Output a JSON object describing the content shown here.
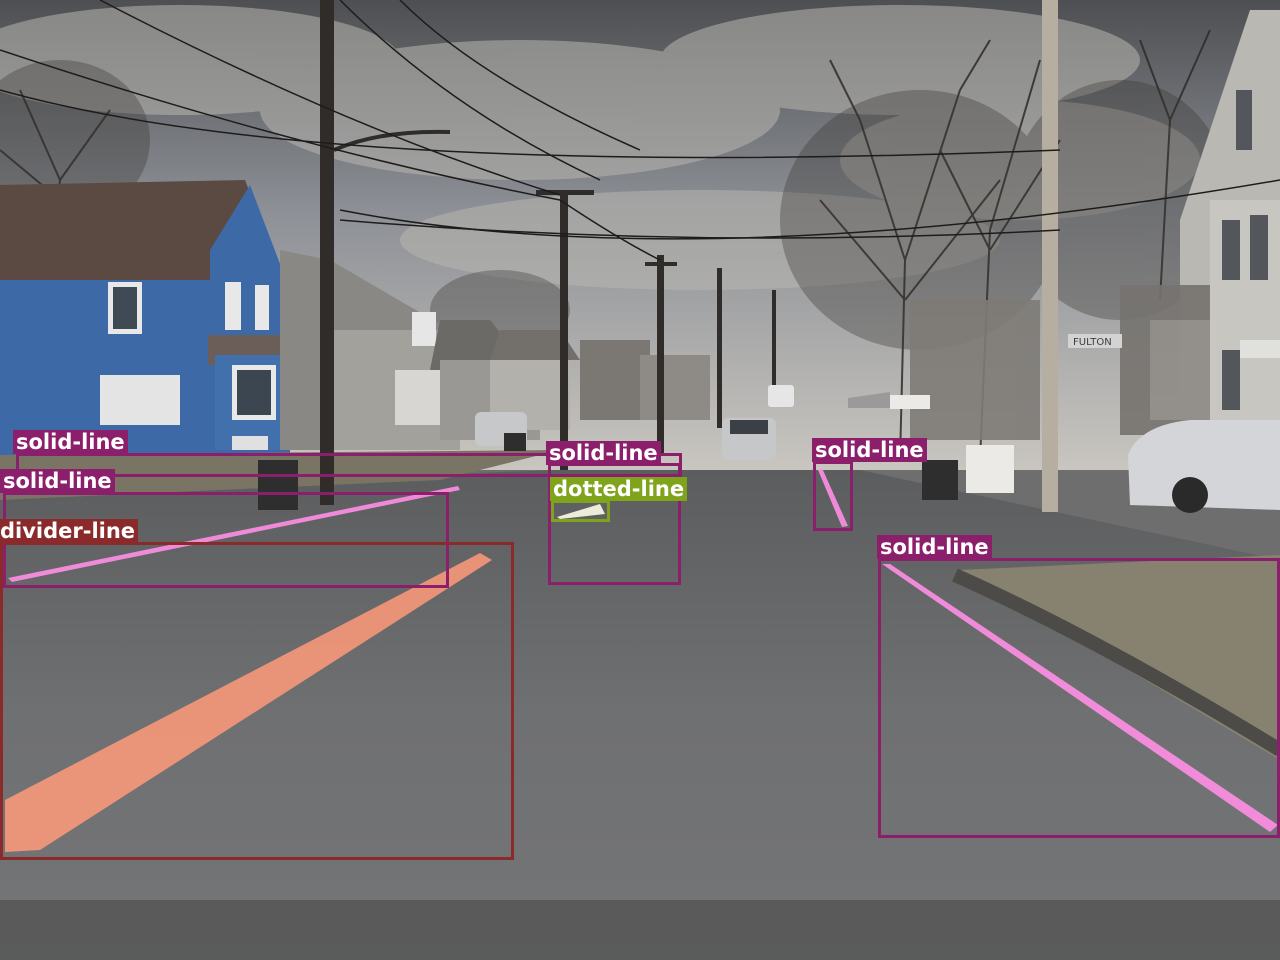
{
  "scene": {
    "description_visible": false,
    "street_sign": "FULTON",
    "colors": {
      "solid_line": "#8c1f6b",
      "divider_line": "#8b2a2a",
      "dotted_line": "#7fa31a",
      "solid_line_mask": "#ff8fe6",
      "divider_line_mask": "#ff9a7a",
      "dotted_line_mask": "#f3f3e0"
    }
  },
  "detections": [
    {
      "id": "det-1",
      "label": "solid-line",
      "class": "solid_line"
    },
    {
      "id": "det-2",
      "label": "solid-line",
      "class": "solid_line"
    },
    {
      "id": "det-3",
      "label": "divider-line",
      "class": "divider_line"
    },
    {
      "id": "det-4",
      "label": "solid-line",
      "class": "solid_line"
    },
    {
      "id": "det-5",
      "label": "dotted-line",
      "class": "dotted_line"
    },
    {
      "id": "det-6",
      "label": "solid-line",
      "class": "solid_line"
    },
    {
      "id": "det-7",
      "label": "solid-line",
      "class": "solid_line"
    }
  ]
}
